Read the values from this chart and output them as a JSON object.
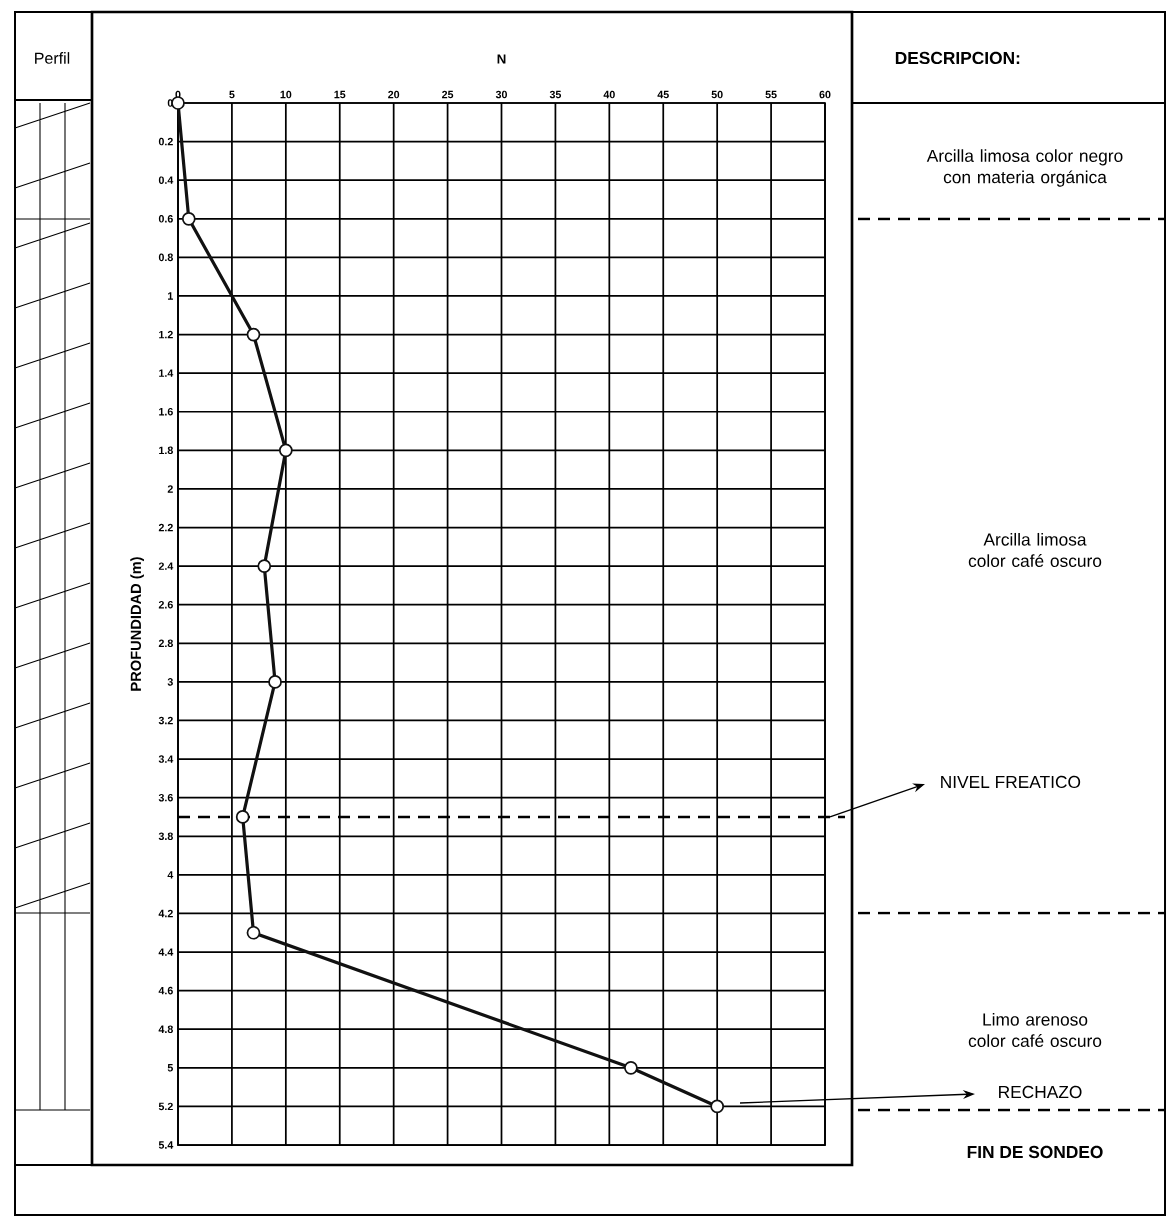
{
  "chart_data": {
    "type": "line",
    "xlabel": "N",
    "ylabel": "PROFUNDIDAD (m)",
    "x": [
      0,
      1,
      7,
      10,
      8,
      9,
      6,
      7,
      42,
      50
    ],
    "series": [
      {
        "color": "#111111",
        "values": [
          0,
          0.6,
          1.2,
          1.8,
          2.4,
          3.0,
          3.7,
          4.3,
          5.0,
          5.2
        ]
      }
    ],
    "xlim": [
      0,
      60
    ],
    "xticks": [
      0,
      5,
      10,
      15,
      20,
      25,
      30,
      35,
      40,
      45,
      50,
      55,
      60
    ],
    "ylim": [
      5.4,
      0
    ],
    "yticks": [
      0,
      0.2,
      0.4,
      0.6,
      0.8,
      1,
      1.2,
      1.4,
      1.6,
      1.8,
      2,
      2.2,
      2.4,
      2.6,
      2.8,
      3,
      3.2,
      3.4,
      3.6,
      3.8,
      4,
      4.2,
      4.4,
      4.6,
      4.8,
      5,
      5.2,
      5.4
    ],
    "grid": true,
    "marker": "circle",
    "line_style": "solid",
    "ref_lines": [
      {
        "axis": "y",
        "value": 3.7,
        "label": "NIVEL FREATICO",
        "line_style": "dashed"
      }
    ],
    "annotations": [
      "Perfil",
      "DESCRIPCION:",
      "Arcilla limosa color negro con materia orgánica",
      "Arcilla limosa color café oscuro",
      "Limo arenoso color café oscuro",
      "RECHAZO",
      "FIN DE SONDEO"
    ]
  }
}
